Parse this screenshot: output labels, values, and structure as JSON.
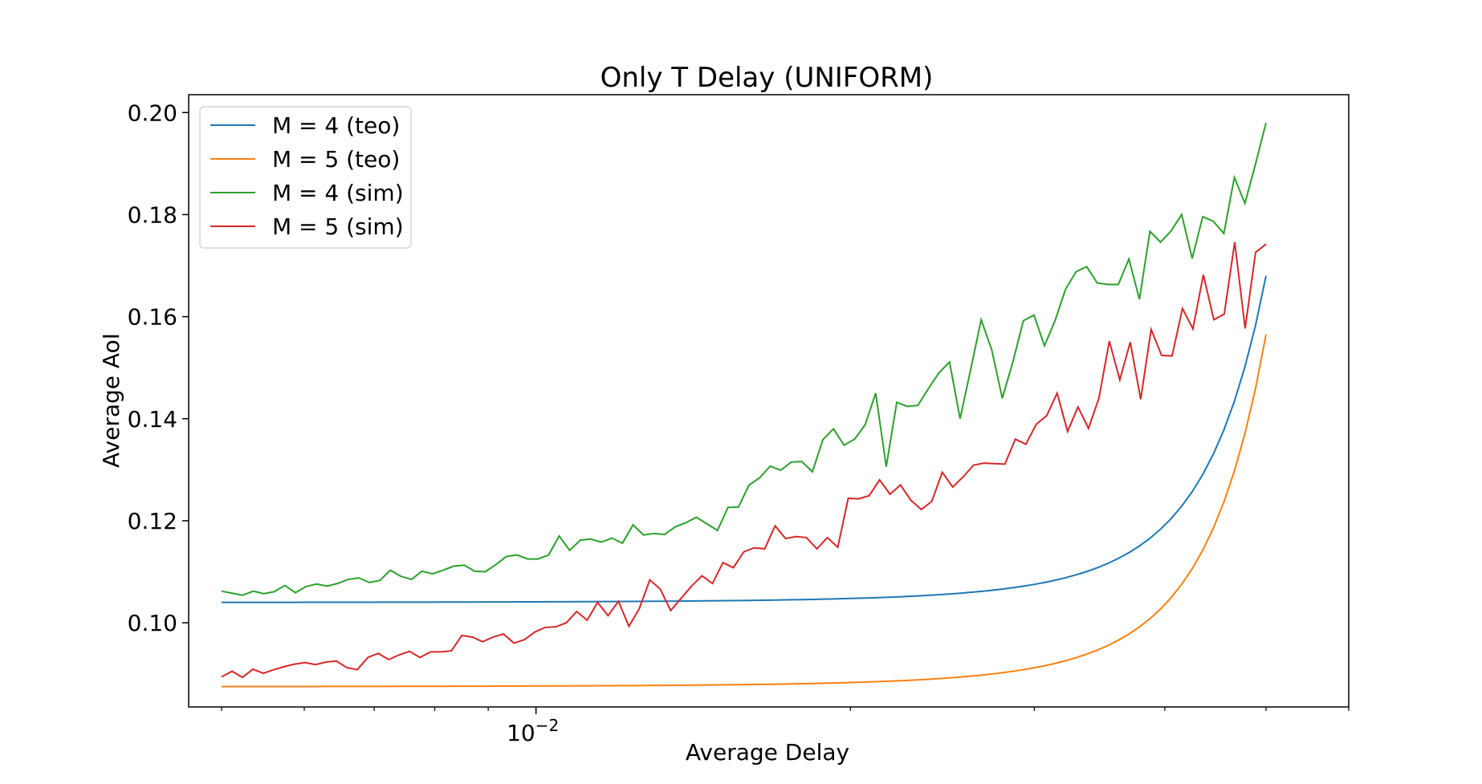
{
  "chart_data": {
    "type": "line",
    "title": "Only T Delay (UNIFORM)",
    "xlabel": "Average Delay",
    "ylabel": "Average AoI",
    "x_scale": "log",
    "x_tick_label": {
      "value": 0.01,
      "base": "10",
      "exponent": "−2"
    },
    "xlim": [
      0.00465,
      0.06
    ],
    "ylim": [
      0.0835,
      0.2035
    ],
    "y_ticks": [
      0.1,
      0.12,
      0.14,
      0.16,
      0.18,
      0.2
    ],
    "y_tick_labels": [
      "0.10",
      "0.12",
      "0.14",
      "0.16",
      "0.18",
      "0.20"
    ],
    "grid": false,
    "legend_position": "upper-left",
    "colors": {
      "teo4": "#1f77b4",
      "teo5": "#ff7f0e",
      "sim4": "#2ca02c",
      "sim5": "#d62728"
    },
    "series": [
      {
        "name": "M = 4 (teo)",
        "kind": "curve",
        "x_start": 0.005,
        "x_end": 0.05,
        "y_start": 0.104,
        "y_end": 0.168
      },
      {
        "name": "M = 5 (teo)",
        "kind": "curve",
        "x_start": 0.005,
        "x_end": 0.05,
        "y_start": 0.0875,
        "y_end": 0.1565
      },
      {
        "name": "M = 4 (sim)",
        "kind": "noisy",
        "x_start": 0.005,
        "x_end": 0.05,
        "values": [
          0.1062,
          0.1058,
          0.1054,
          0.1062,
          0.1057,
          0.1061,
          0.1073,
          0.1059,
          0.1071,
          0.1076,
          0.1072,
          0.1077,
          0.1085,
          0.1088,
          0.1079,
          0.1083,
          0.1103,
          0.1091,
          0.1085,
          0.1101,
          0.1096,
          0.1103,
          0.1111,
          0.1113,
          0.1101,
          0.11,
          0.1114,
          0.113,
          0.1133,
          0.1125,
          0.1125,
          0.1133,
          0.117,
          0.1142,
          0.1162,
          0.1164,
          0.1158,
          0.1166,
          0.1156,
          0.1192,
          0.1172,
          0.1175,
          0.1173,
          0.1188,
          0.1196,
          0.1207,
          0.1194,
          0.1181,
          0.1226,
          0.1227,
          0.127,
          0.1284,
          0.1307,
          0.1299,
          0.1315,
          0.1316,
          0.1296,
          0.1359,
          0.138,
          0.1348,
          0.136,
          0.1388,
          0.145,
          0.1306,
          0.1432,
          0.1424,
          0.1426,
          0.1459,
          0.149,
          0.1511,
          0.14,
          0.1496,
          0.1594,
          0.1535,
          0.144,
          0.1511,
          0.1592,
          0.1603,
          0.1543,
          0.1592,
          0.1654,
          0.1688,
          0.1698,
          0.1666,
          0.1663,
          0.1663,
          0.1713,
          0.1634,
          0.1767,
          0.1746,
          0.1768,
          0.18,
          0.1714,
          0.1796,
          0.1787,
          0.1763,
          0.1873,
          0.1822,
          0.1899,
          0.198
        ]
      },
      {
        "name": "M = 5 (sim)",
        "kind": "noisy",
        "x_start": 0.005,
        "x_end": 0.05,
        "values": [
          0.0894,
          0.0905,
          0.0893,
          0.0909,
          0.0901,
          0.0908,
          0.0914,
          0.0919,
          0.0922,
          0.0918,
          0.0923,
          0.0925,
          0.0912,
          0.0908,
          0.0932,
          0.094,
          0.0928,
          0.0937,
          0.0944,
          0.0932,
          0.0943,
          0.0943,
          0.0945,
          0.0975,
          0.0972,
          0.0963,
          0.0972,
          0.0978,
          0.096,
          0.0967,
          0.0982,
          0.0991,
          0.0992,
          0.1,
          0.1022,
          0.1005,
          0.104,
          0.1014,
          0.1042,
          0.0993,
          0.1028,
          0.1084,
          0.1066,
          0.1024,
          0.1048,
          0.1072,
          0.1092,
          0.1077,
          0.1118,
          0.1108,
          0.1139,
          0.1147,
          0.1145,
          0.119,
          0.1165,
          0.1169,
          0.1167,
          0.1145,
          0.1167,
          0.1148,
          0.1244,
          0.1243,
          0.1249,
          0.128,
          0.1252,
          0.127,
          0.124,
          0.1222,
          0.1238,
          0.1295,
          0.1266,
          0.1286,
          0.1309,
          0.1313,
          0.1312,
          0.1311,
          0.136,
          0.135,
          0.1389,
          0.1406,
          0.145,
          0.1375,
          0.1423,
          0.1381,
          0.144,
          0.1552,
          0.1476,
          0.155,
          0.1438,
          0.1575,
          0.1524,
          0.1523,
          0.1616,
          0.1576,
          0.1682,
          0.1594,
          0.1605,
          0.1746,
          0.1577,
          0.1726,
          0.1742
        ]
      }
    ]
  }
}
